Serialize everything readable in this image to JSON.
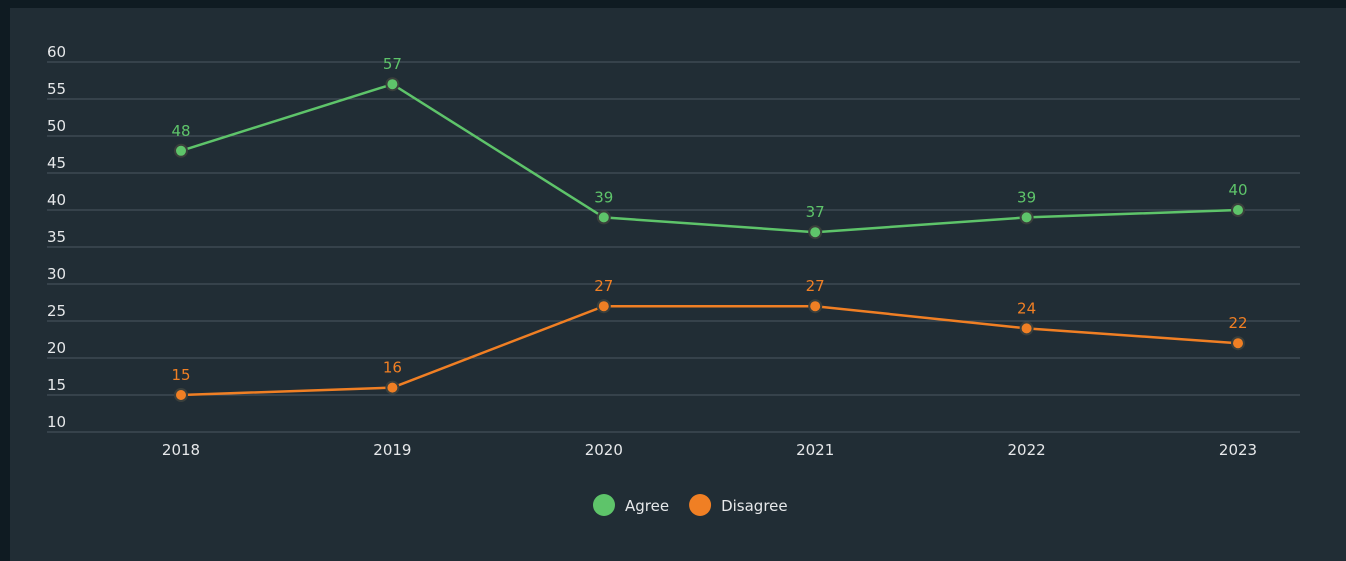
{
  "chart_data": {
    "type": "line",
    "categories": [
      "2018",
      "2019",
      "2020",
      "2021",
      "2022",
      "2023"
    ],
    "series": [
      {
        "name": "Agree",
        "color": "#5ec46a",
        "values": [
          48,
          57,
          39,
          37,
          39,
          40
        ]
      },
      {
        "name": "Disagree",
        "color": "#f07f24",
        "values": [
          15,
          16,
          27,
          27,
          24,
          22
        ]
      }
    ],
    "ylim": [
      10,
      60
    ],
    "yticks": [
      10,
      15,
      20,
      25,
      30,
      35,
      40,
      45,
      50,
      55,
      60
    ],
    "grid": true,
    "legend": "bottom",
    "data_labels": true
  }
}
